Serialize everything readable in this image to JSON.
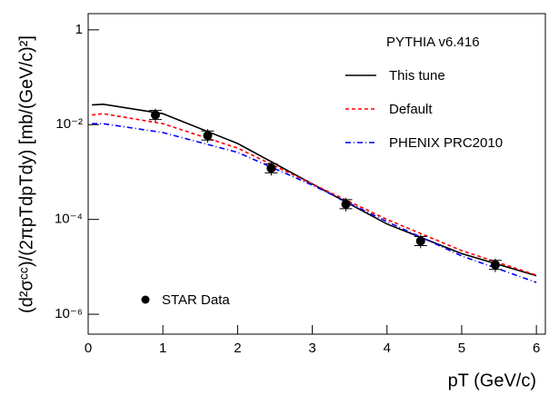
{
  "chart_data": {
    "type": "line",
    "x_label": "pT (GeV/c)",
    "y_label": "(d²σᶜᶜ)/(2πpTdpTdy) [mb/(GeV/c)²]",
    "legend_title": "PYTHIA v6.416",
    "xlim": [
      0,
      6.12
    ],
    "ylim": [
      3.8e-07,
      2.2
    ],
    "log_y": true,
    "xticks": [
      0,
      1,
      2,
      3,
      4,
      5,
      6
    ],
    "yticks": [
      1,
      {
        "value": 0.01,
        "label": "10⁻²"
      },
      {
        "value": 0.0001,
        "label": "10⁻⁴"
      },
      {
        "value": 1e-06,
        "label": "10⁻⁶"
      }
    ],
    "series": [
      {
        "name": "This tune",
        "color": "#000000",
        "style": "solid",
        "x": [
          0.05,
          0.2,
          1,
          2,
          3,
          4,
          5,
          6
        ],
        "values": [
          0.026,
          0.027,
          0.017,
          0.004,
          0.00056,
          8e-05,
          1.9e-05,
          6.5e-06
        ]
      },
      {
        "name": "Default",
        "color": "#ff0000",
        "style": "dashed",
        "x": [
          0.05,
          0.2,
          1,
          2,
          3,
          4,
          5,
          6
        ],
        "values": [
          0.016,
          0.017,
          0.0105,
          0.0032,
          0.00056,
          0.0001,
          2.2e-05,
          6.7e-06
        ]
      },
      {
        "name": "PHENIX PRC2010",
        "color": "#0000ff",
        "style": "dashdot",
        "x": [
          0.05,
          0.2,
          1,
          2,
          3,
          4,
          5,
          6
        ],
        "values": [
          0.0105,
          0.0105,
          0.0068,
          0.0026,
          0.00053,
          9e-05,
          1.7e-05,
          4.7e-06
        ]
      },
      {
        "name": "STAR Data",
        "color": "#000000",
        "style": "marker",
        "x": [
          0.9,
          1.6,
          2.45,
          3.45,
          4.45,
          5.45
        ],
        "values": [
          0.016,
          0.0059,
          0.0012,
          0.00021,
          3.5e-05,
          1.1e-05
        ]
      }
    ]
  }
}
